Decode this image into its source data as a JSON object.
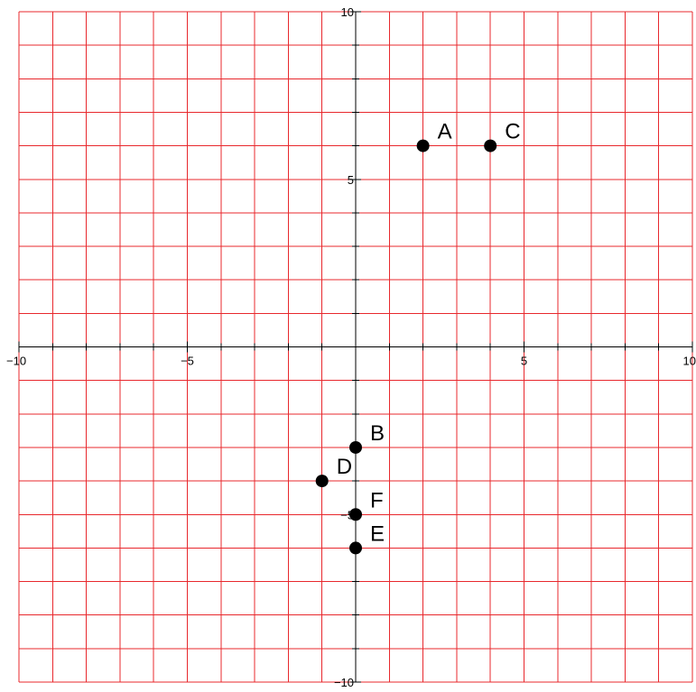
{
  "chart_data": {
    "type": "scatter",
    "xlim": [
      -10,
      10
    ],
    "ylim": [
      -10,
      10
    ],
    "grid": true,
    "grid_step": 1,
    "x_tick_labels": [
      {
        "value": -10,
        "label": "−10"
      },
      {
        "value": -5,
        "label": "−5"
      },
      {
        "value": 5,
        "label": "5"
      },
      {
        "value": 10,
        "label": "10"
      }
    ],
    "y_tick_labels": [
      {
        "value": 10,
        "label": "10"
      },
      {
        "value": 5,
        "label": "5"
      },
      {
        "value": -5,
        "label": "−5"
      },
      {
        "value": -10,
        "label": "−10"
      }
    ],
    "points": [
      {
        "label": "A",
        "x": 2,
        "y": 6
      },
      {
        "label": "C",
        "x": 4,
        "y": 6
      },
      {
        "label": "B",
        "x": 0,
        "y": -3
      },
      {
        "label": "D",
        "x": -1,
        "y": -4
      },
      {
        "label": "F",
        "x": 0,
        "y": -5
      },
      {
        "label": "E",
        "x": 0,
        "y": -6
      }
    ]
  },
  "colors": {
    "grid": "#e8282d",
    "axis": "#000000",
    "point": "#000000"
  }
}
